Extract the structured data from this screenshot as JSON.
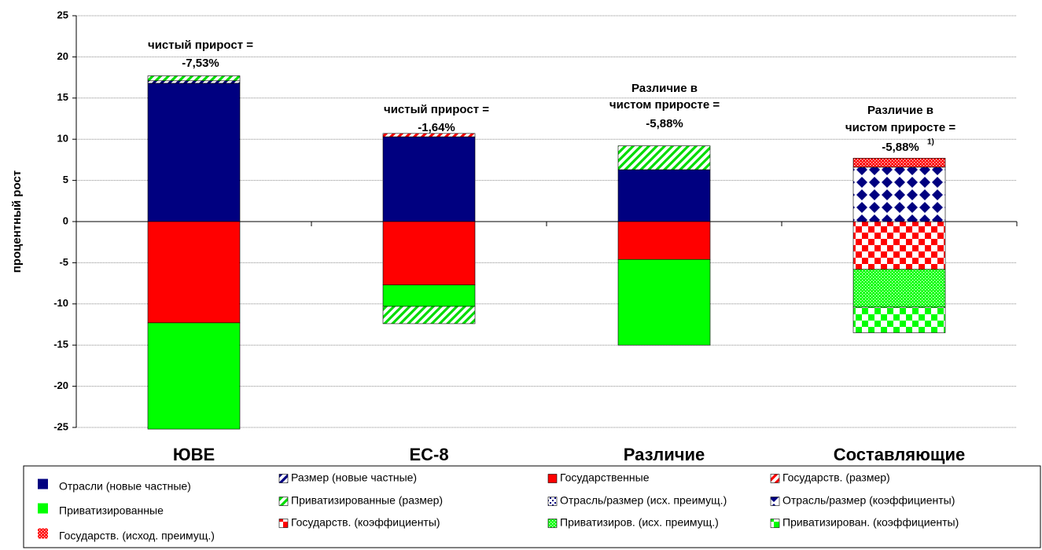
{
  "chart_data": {
    "type": "stacked-bar",
    "y_label": "процентный рост",
    "categories": [
      "ЮВЕ",
      "ЕС-8",
      "Различие",
      "Составляющие"
    ],
    "ylim": [
      -25,
      25
    ],
    "yticks": [
      -25,
      -20,
      -15,
      -10,
      -5,
      0,
      5,
      10,
      15,
      20,
      25
    ],
    "grid": true,
    "series": [
      {
        "name": "Отрасли (новые частные)",
        "color": "#000080",
        "pattern": "solid",
        "values": [
          16.8,
          10.3,
          6.3,
          null
        ]
      },
      {
        "name": "Приватизированные",
        "color": "#00ff00",
        "pattern": "solid",
        "values": [
          -12.9,
          -2.6,
          -10.4,
          null
        ]
      },
      {
        "name": "Государств. (исход. преимущ.)",
        "color": "#ff0000",
        "pattern": "dots",
        "values": [
          null,
          null,
          null,
          1.1
        ]
      },
      {
        "name": "Размер (новые частные)",
        "color": "#000080",
        "pattern": "hatch",
        "values": [
          0.3,
          null,
          null,
          null
        ]
      },
      {
        "name": "Приватизированные (размер)",
        "color": "#00dd00",
        "pattern": "hatch",
        "values": [
          0.6,
          -2.1,
          2.9,
          null
        ]
      },
      {
        "name": "Государств. (коэффициенты)",
        "color": "#ff0000",
        "pattern": "checker",
        "values": [
          null,
          null,
          null,
          -5.8
        ]
      },
      {
        "name": "Государственные",
        "color": "#ff0000",
        "pattern": "solid",
        "values": [
          -12.3,
          -7.7,
          -4.6,
          null
        ]
      },
      {
        "name": "Отрасль/размер (исх. преимущ.)",
        "color": "#000080",
        "pattern": "specks",
        "values": [
          null,
          null,
          null,
          null
        ]
      },
      {
        "name": "Приватизиров. (исх. преимущ.)",
        "color": "#00ff00",
        "pattern": "dots",
        "values": [
          null,
          null,
          null,
          -4.6
        ]
      },
      {
        "name": "Государств. (размер)",
        "color": "#ff0000",
        "pattern": "hatch",
        "values": [
          null,
          0.4,
          null,
          null
        ]
      },
      {
        "name": "Отрасль/размер (коэффициенты)",
        "color": "#000080",
        "pattern": "diamonds",
        "values": [
          null,
          null,
          null,
          6.6
        ]
      },
      {
        "name": "Приватизирован. (коэффициенты)",
        "color": "#00ff00",
        "pattern": "checker",
        "values": [
          null,
          null,
          null,
          -3.1
        ]
      }
    ],
    "annotations": [
      {
        "lines": [
          "чистый прирост =",
          "-7,53%"
        ]
      },
      {
        "lines": [
          "чистый прирост =",
          "-1,64%"
        ]
      },
      {
        "lines": [
          "Различие в",
          "чистом приросте =",
          "-5,88%"
        ]
      },
      {
        "lines": [
          "Различие в",
          "чистом приросте =",
          "-5,88%"
        ],
        "note": "1)"
      }
    ]
  }
}
